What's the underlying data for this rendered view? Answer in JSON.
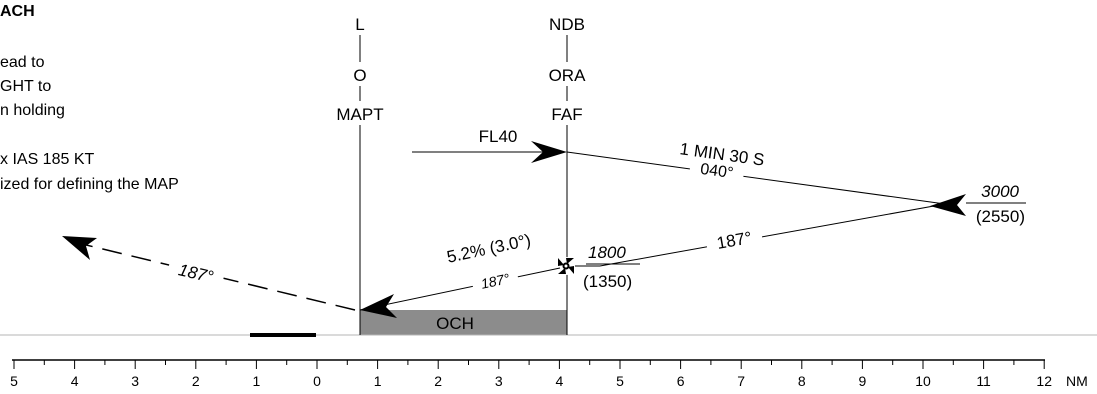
{
  "header": {
    "title_fragment": "ACH",
    "notes": [
      "ead to",
      "GHT to",
      "n holding",
      "x IAS 185 KT",
      "ized for defining the MAP"
    ]
  },
  "fixes": [
    {
      "id": "L",
      "ident": "O",
      "role": "MAPT"
    },
    {
      "id": "NDB",
      "ident": "ORA",
      "role": "FAF"
    }
  ],
  "labels": {
    "level": "FL40",
    "holding_time": "1 MIN 30 S",
    "holding_course": "040°",
    "holding_altitude": "3000",
    "holding_height": "(2550)",
    "inbound_course": "187°",
    "fix_altitude": "1800",
    "fix_height": "(1350)",
    "gradient": "5.2% (3.0°)",
    "final_course": "187°",
    "missed_course": "187°",
    "och": "OCH"
  },
  "scale": {
    "unit": "NM",
    "ticks": [
      "5",
      "4",
      "3",
      "2",
      "1",
      "0",
      "1",
      "2",
      "3",
      "4",
      "5",
      "6",
      "7",
      "8",
      "9",
      "10",
      "11",
      "12"
    ]
  },
  "colors": {
    "ink": "#000000",
    "och_fill": "#8c8c8c",
    "ground": "#b4b4b4"
  }
}
